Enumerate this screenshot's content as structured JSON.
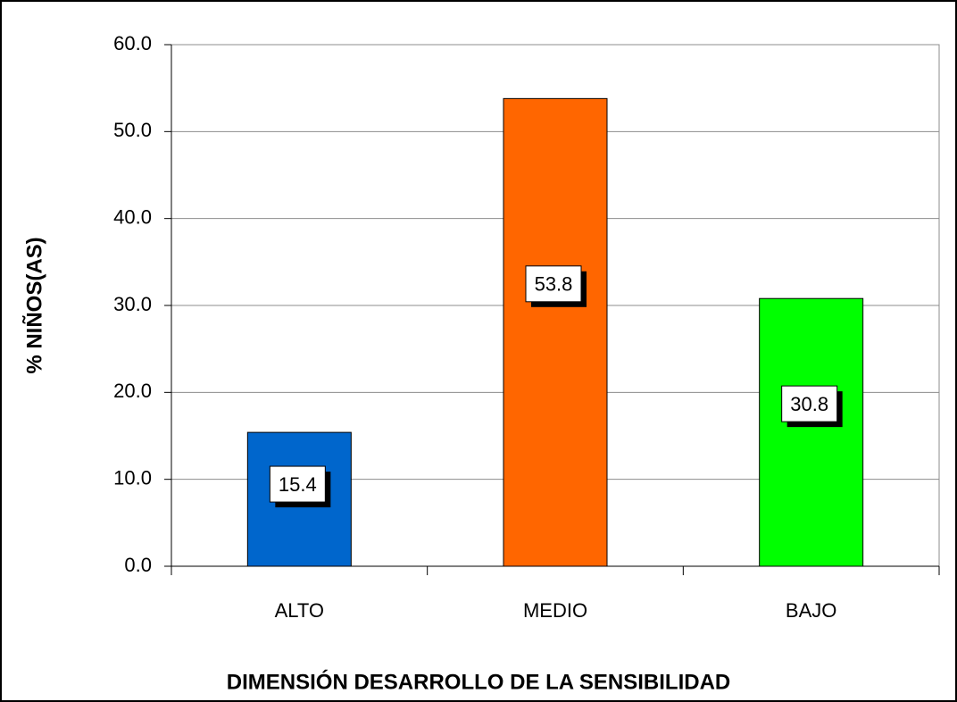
{
  "chart_data": {
    "type": "bar",
    "x_label": "DIMENSIÓN DESARROLLO DE LA SENSIBILIDAD",
    "y_label": "% NIÑOS(AS)",
    "categories": [
      "ALTO",
      "MEDIO",
      "BAJO"
    ],
    "values": [
      15.4,
      53.8,
      30.8
    ],
    "colors": [
      "#0066cc",
      "#ff6600",
      "#00ff00"
    ],
    "ylim": [
      0,
      60
    ],
    "yticks": [
      {
        "value": 0,
        "label": "0.0"
      },
      {
        "value": 10,
        "label": "10.0"
      },
      {
        "value": 20,
        "label": "20.0"
      },
      {
        "value": 30,
        "label": "30.0"
      },
      {
        "value": 40,
        "label": "40.0"
      },
      {
        "value": 50,
        "label": "50.0"
      },
      {
        "value": 60,
        "label": "60.0"
      }
    ],
    "grid": true
  }
}
